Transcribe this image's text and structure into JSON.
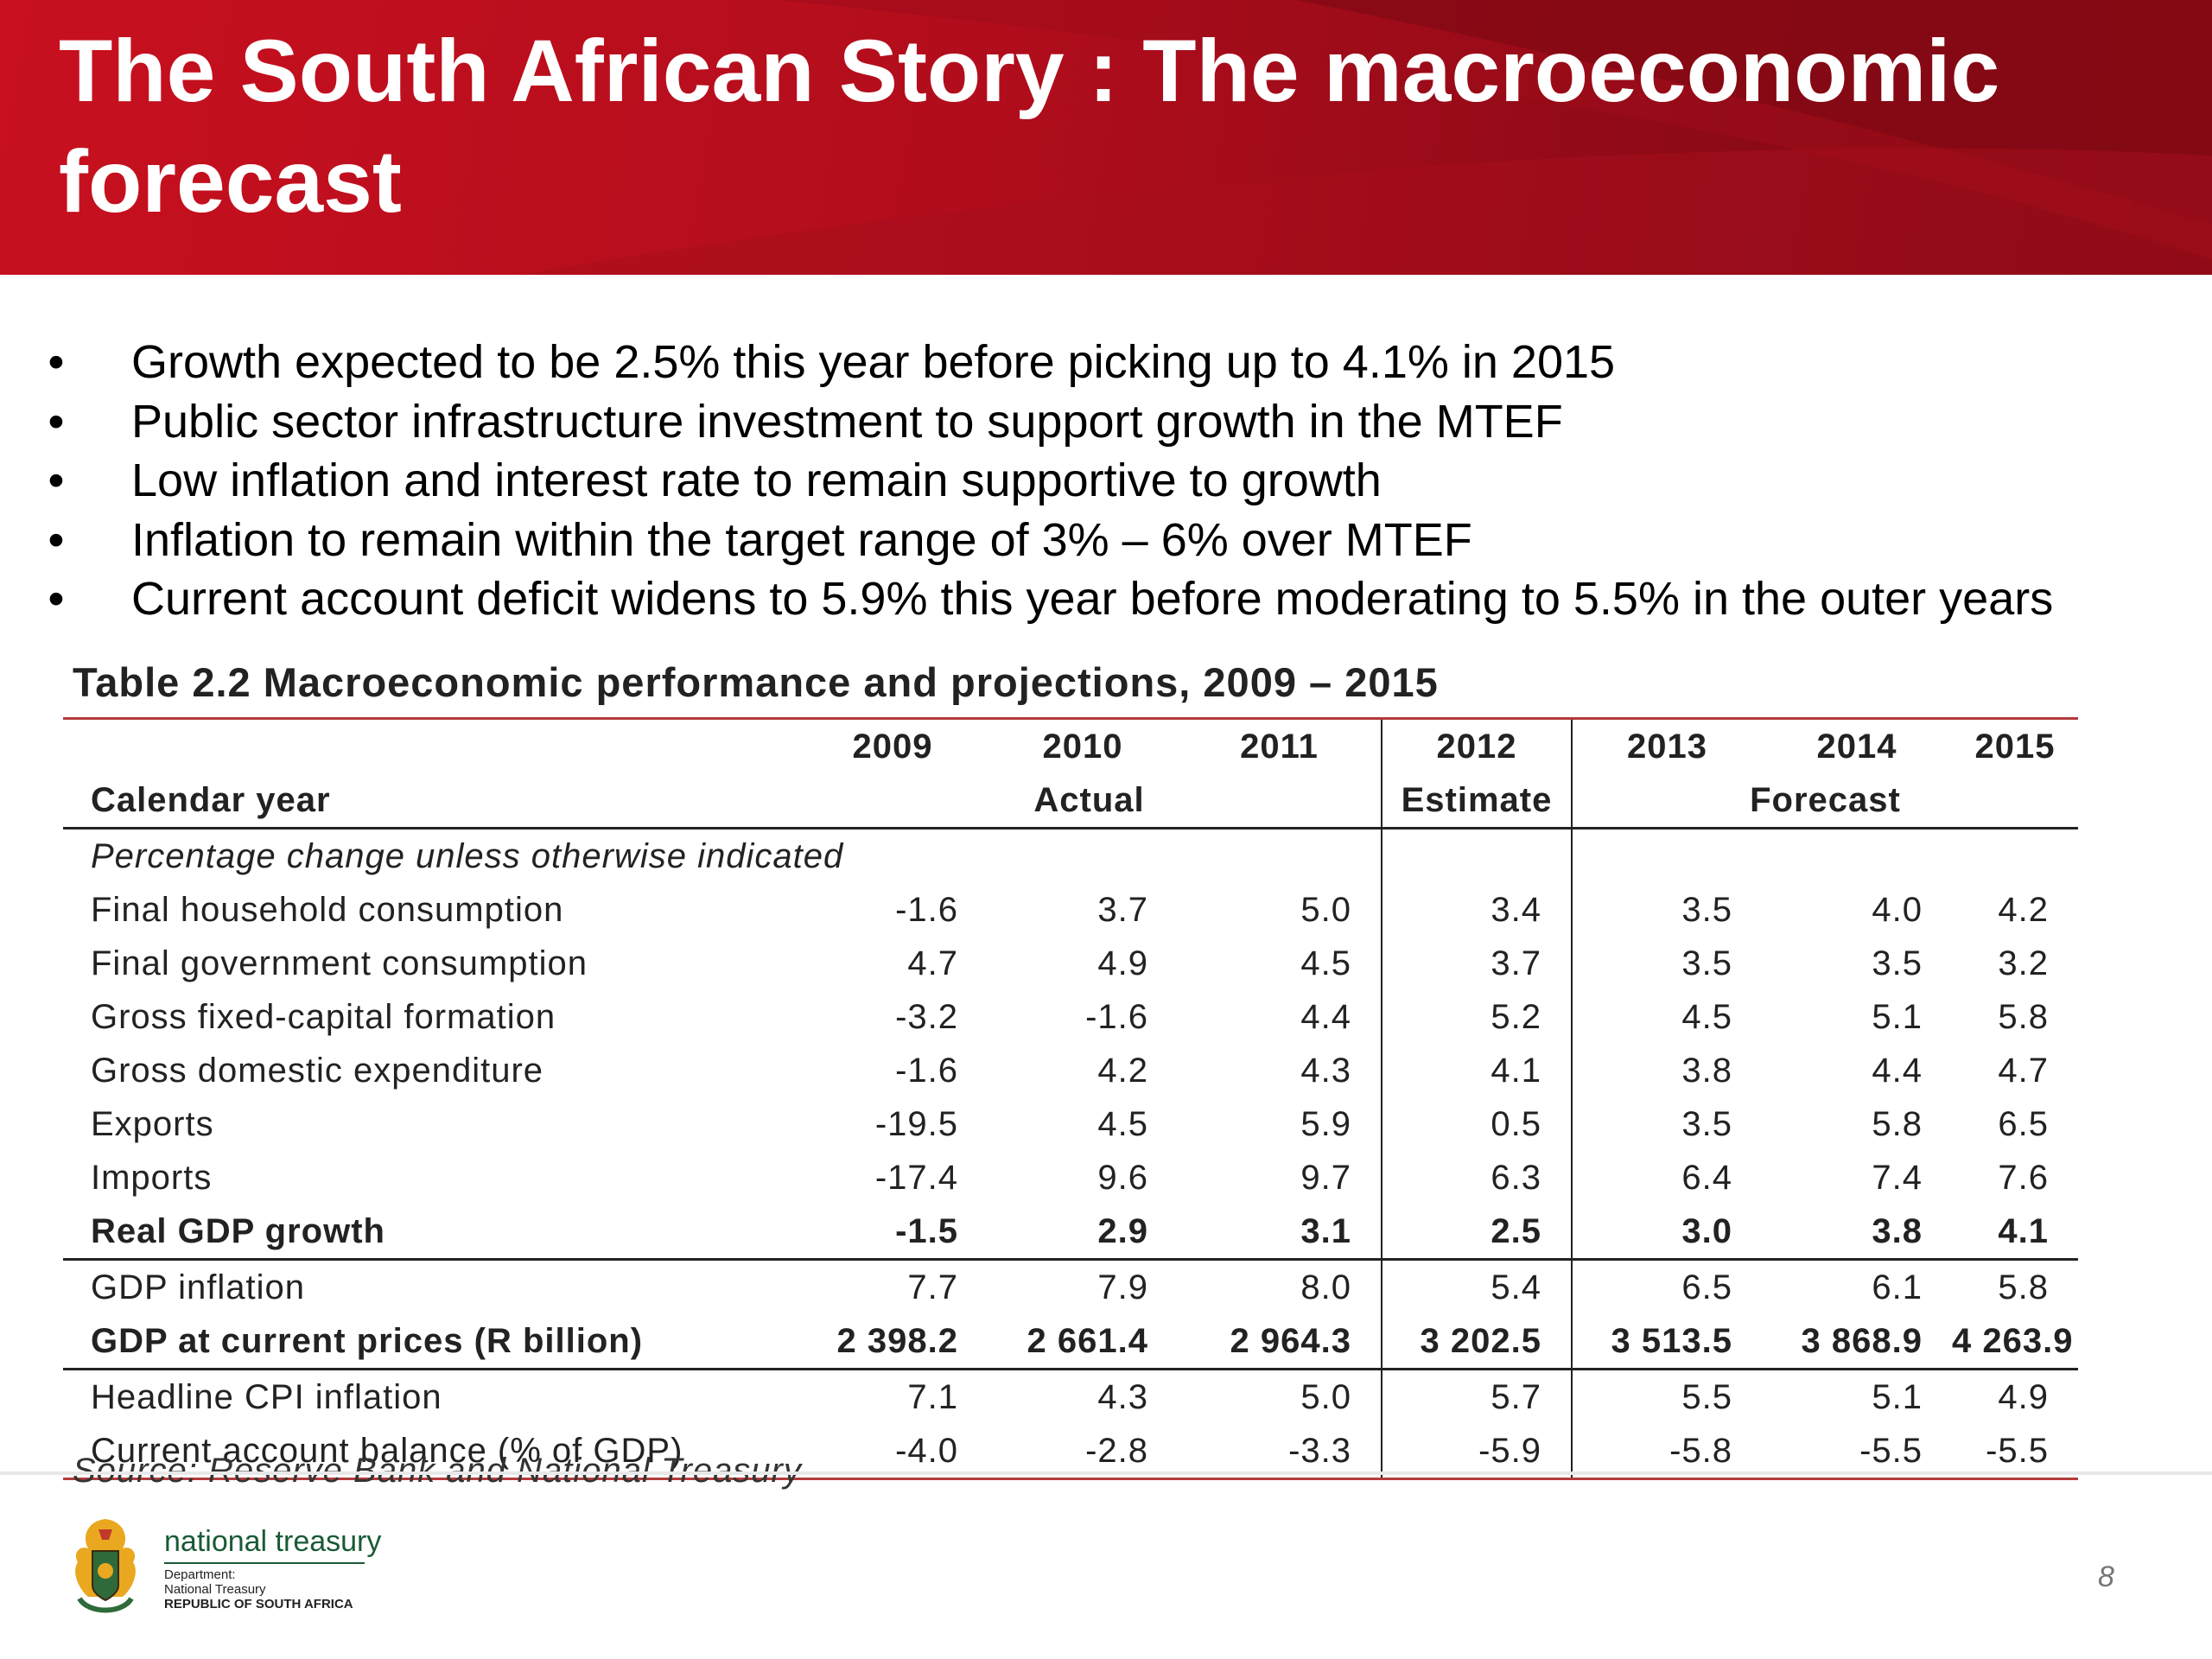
{
  "title": "The South African Story : The macroeconomic forecast",
  "bullets": [
    "Growth expected to be 2.5% this year before picking up to 4.1% in 2015",
    "Public sector infrastructure investment to support growth in the MTEF",
    "Low inflation and interest rate to remain supportive to growth",
    "Inflation to remain within the target range of 3% – 6% over MTEF",
    "Current account deficit widens to 5.9% this year before moderating to 5.5% in the outer years"
  ],
  "bullet_char": "•",
  "table": {
    "title": "Table 2.2  Macroeconomic performance and projections, 2009 – 2015",
    "row_header": "Calendar year",
    "years": [
      "2009",
      "2010",
      "2011",
      "2012",
      "2013",
      "2014",
      "2015"
    ],
    "groups": {
      "actual": "Actual",
      "estimate": "Estimate",
      "forecast": "Forecast"
    },
    "note": "Percentage change unless otherwise indicated",
    "rows": [
      {
        "label": "Final household consumption",
        "values": [
          "-1.6",
          "3.7",
          "5.0",
          "3.4",
          "3.5",
          "4.0",
          "4.2"
        ]
      },
      {
        "label": "Final government consumption",
        "values": [
          "4.7",
          "4.9",
          "4.5",
          "3.7",
          "3.5",
          "3.5",
          "3.2"
        ]
      },
      {
        "label": "Gross fixed-capital formation",
        "values": [
          "-3.2",
          "-1.6",
          "4.4",
          "5.2",
          "4.5",
          "5.1",
          "5.8"
        ]
      },
      {
        "label": "Gross domestic expenditure",
        "values": [
          "-1.6",
          "4.2",
          "4.3",
          "4.1",
          "3.8",
          "4.4",
          "4.7"
        ]
      },
      {
        "label": "Exports",
        "values": [
          "-19.5",
          "4.5",
          "5.9",
          "0.5",
          "3.5",
          "5.8",
          "6.5"
        ]
      },
      {
        "label": "Imports",
        "values": [
          "-17.4",
          "9.6",
          "9.7",
          "6.3",
          "6.4",
          "7.4",
          "7.6"
        ]
      },
      {
        "label": "Real GDP growth",
        "values": [
          "-1.5",
          "2.9",
          "3.1",
          "2.5",
          "3.0",
          "3.8",
          "4.1"
        ]
      },
      {
        "label": "GDP inflation",
        "values": [
          "7.7",
          "7.9",
          "8.0",
          "5.4",
          "6.5",
          "6.1",
          "5.8"
        ]
      },
      {
        "label": "GDP at current prices (R billion)",
        "values": [
          "2 398.2",
          "2 661.4",
          "2 964.3",
          "3 202.5",
          "3 513.5",
          "3 868.9",
          "4 263.9"
        ]
      },
      {
        "label": "Headline CPI inflation",
        "values": [
          "7.1",
          "4.3",
          "5.0",
          "5.7",
          "5.5",
          "5.1",
          "4.9"
        ]
      },
      {
        "label": "Current account balance (% of GDP)",
        "values": [
          "-4.0",
          "-2.8",
          "-3.3",
          "-5.9",
          "-5.8",
          "-5.5",
          "-5.5"
        ]
      }
    ],
    "source": "Source: Reserve Bank and National Treasury"
  },
  "footer": {
    "org_name": "national treasury",
    "dept_lines": [
      "Department:",
      "National Treasury",
      "REPUBLIC OF SOUTH AFRICA"
    ],
    "page_number": "8",
    "logo_icon": "coat-of-arms-icon"
  },
  "colors": {
    "banner_red": "#c8101f",
    "rule_red": "#b43a3a",
    "treasury_green": "#1a5a35"
  }
}
